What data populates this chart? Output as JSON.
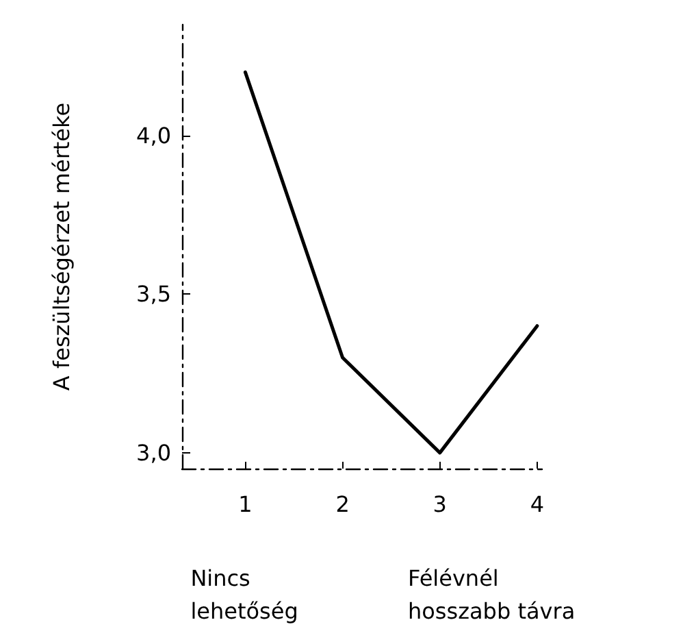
{
  "chart_data": {
    "type": "line",
    "ylabel": "A feszültségérzet mértéke",
    "x": [
      1,
      2,
      3,
      4
    ],
    "values": [
      4.2,
      3.3,
      3.0,
      3.4
    ],
    "color": "#000000",
    "xlim": [
      0.35,
      4.05
    ],
    "xticks": [
      1,
      2,
      3,
      4
    ],
    "ylim": [
      2.95,
      4.35
    ],
    "yticks": [
      {
        "value": 3.0,
        "label": "3,0"
      },
      {
        "value": 3.5,
        "label": "3,5"
      },
      {
        "value": 4.0,
        "label": "4,0"
      }
    ],
    "annotations": [
      "Nincs\nlehetőség",
      "Félévnél\nhosszabb távra"
    ],
    "grid": false,
    "marker": "none",
    "line_style": "solid"
  }
}
